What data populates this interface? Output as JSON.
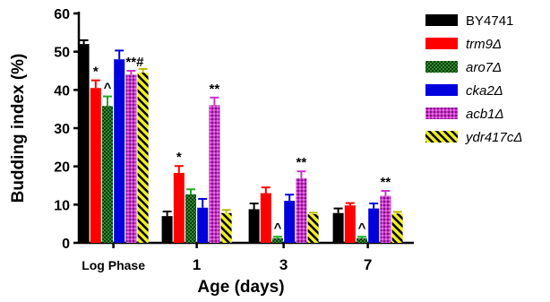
{
  "chart_data": {
    "type": "bar",
    "ylabel": "Budding index (%)",
    "xlabel": "Age (days)",
    "ylim": [
      0,
      60
    ],
    "yticks": [
      "0",
      "10",
      "20",
      "30",
      "40",
      "50",
      "60"
    ],
    "categories": [
      "Log Phase",
      "1",
      "3",
      "7"
    ],
    "series": [
      {
        "name": "BY4741",
        "italic": false,
        "values": [
          52,
          7,
          8.8,
          7.8
        ],
        "errors": [
          1,
          1.2,
          1.5,
          1.2
        ],
        "color": "#000000",
        "pattern": "solid"
      },
      {
        "name": "trm9Δ",
        "italic": true,
        "values": [
          40.5,
          18.3,
          13,
          9.8
        ],
        "errors": [
          2,
          1.8,
          1.5,
          0.6
        ],
        "color": "#ff0000",
        "pattern": "solid"
      },
      {
        "name": "aro7Δ",
        "italic": true,
        "values": [
          35.8,
          12.7,
          1.2,
          1.2
        ],
        "errors": [
          2.5,
          1.3,
          0.4,
          0.4
        ],
        "color": "#1f7a1f",
        "pattern": "checker"
      },
      {
        "name": "cka2Δ",
        "italic": true,
        "values": [
          48,
          9.2,
          11,
          9
        ],
        "errors": [
          2.3,
          2.3,
          1.6,
          1.3
        ],
        "color": "#0000dd",
        "pattern": "solid"
      },
      {
        "name": "acb1Δ",
        "italic": true,
        "values": [
          44,
          36,
          16.9,
          12.3
        ],
        "errors": [
          1,
          2,
          1.8,
          1.3
        ],
        "color": "#cc33cc",
        "pattern": "dots"
      },
      {
        "name": "ydr417cΔ",
        "italic": true,
        "values": [
          44.5,
          7.8,
          7.5,
          7.6
        ],
        "errors": [
          1,
          0.8,
          0.4,
          0.5
        ],
        "color": "#e6e600",
        "pattern": "stripes"
      }
    ],
    "annotations": [
      {
        "category": 0,
        "series": 1,
        "text": "*"
      },
      {
        "category": 0,
        "series": 2,
        "text": "^"
      },
      {
        "category": 0,
        "series": 4,
        "text": "**#"
      },
      {
        "category": 1,
        "series": 1,
        "text": "*"
      },
      {
        "category": 1,
        "series": 4,
        "text": "**"
      },
      {
        "category": 2,
        "series": 2,
        "text": "^"
      },
      {
        "category": 2,
        "series": 4,
        "text": "**"
      },
      {
        "category": 3,
        "series": 2,
        "text": "^"
      },
      {
        "category": 3,
        "series": 4,
        "text": "**"
      }
    ],
    "legend_position": "right"
  }
}
